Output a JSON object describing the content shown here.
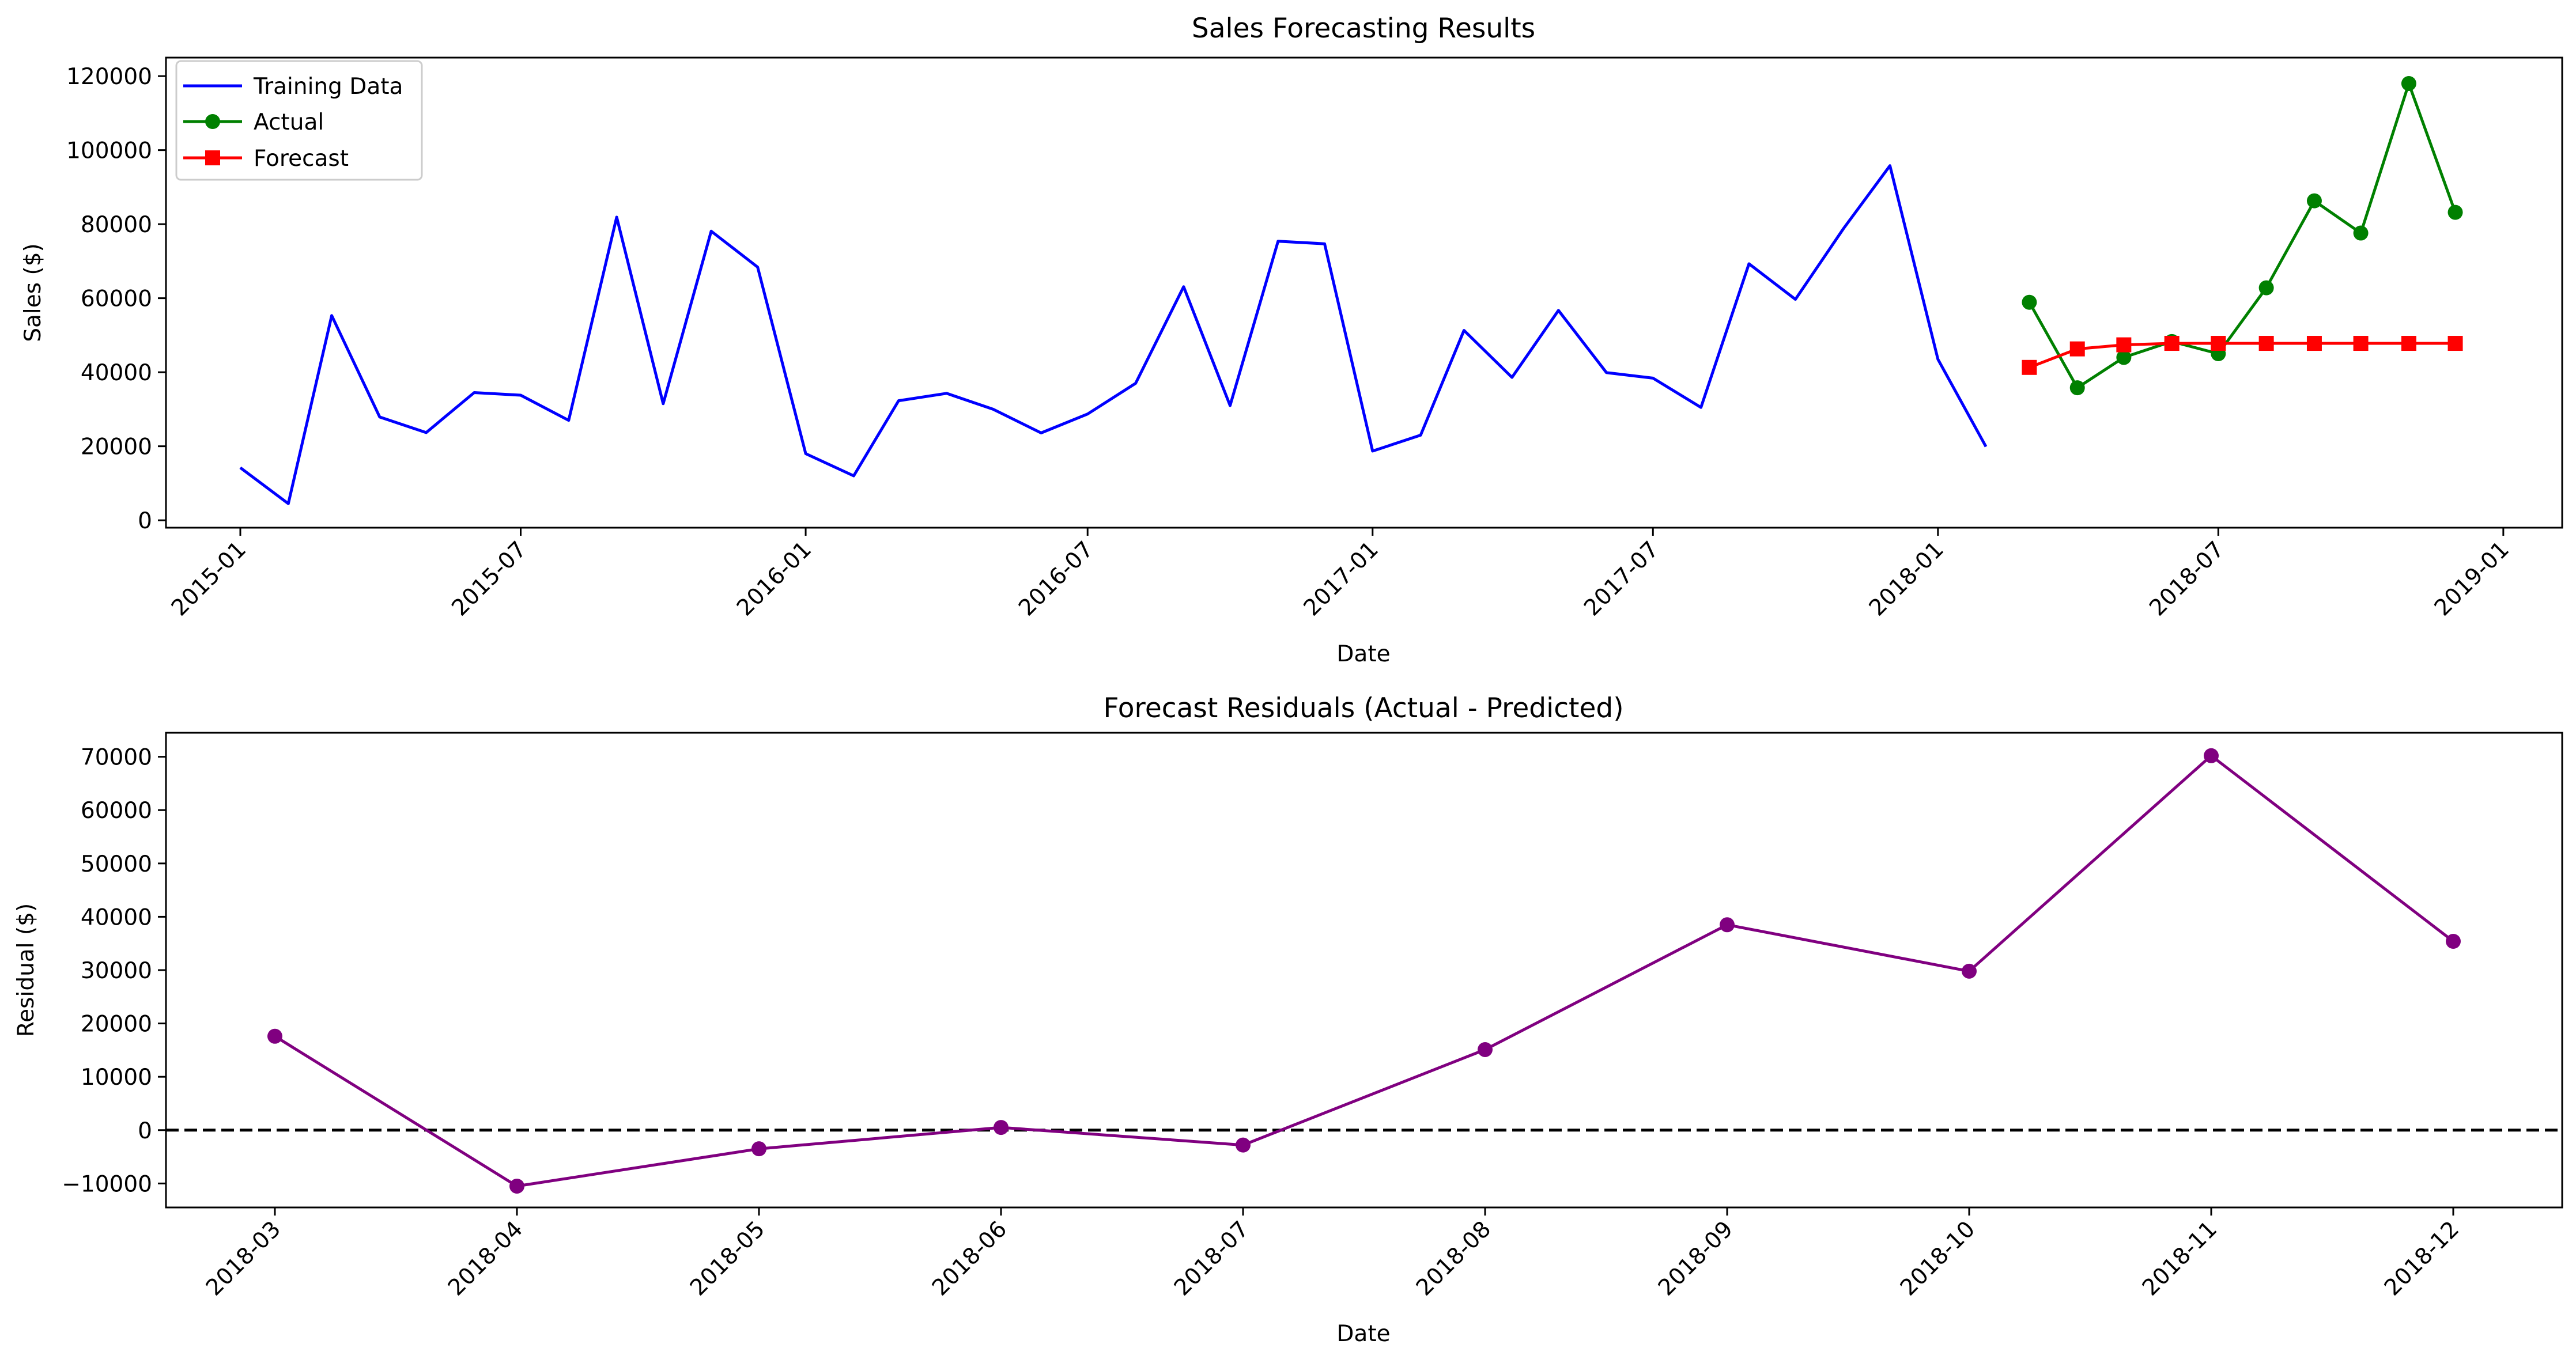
{
  "chart_data": [
    {
      "type": "line",
      "title": "Sales Forecasting Results",
      "xlabel": "Date",
      "ylabel": "Sales ($)",
      "x_axis_type": "date",
      "xlim": [
        "2014-11-14",
        "2019-02-08"
      ],
      "ylim": [
        -2000,
        125000
      ],
      "x_ticks": [
        "2015-01",
        "2015-07",
        "2016-01",
        "2016-07",
        "2017-01",
        "2017-07",
        "2018-01",
        "2018-07",
        "2019-01"
      ],
      "y_ticks": [
        0,
        20000,
        40000,
        60000,
        80000,
        100000,
        120000
      ],
      "grid": false,
      "legend": "upper left",
      "series": [
        {
          "name": "Training Data",
          "color": "#0000ff",
          "marker": "none",
          "x": [
            "2015-01-01",
            "2015-02-01",
            "2015-03-01",
            "2015-04-01",
            "2015-05-01",
            "2015-06-01",
            "2015-07-01",
            "2015-08-01",
            "2015-09-01",
            "2015-10-01",
            "2015-11-01",
            "2015-12-01",
            "2016-01-01",
            "2016-02-01",
            "2016-03-01",
            "2016-04-01",
            "2016-05-01",
            "2016-06-01",
            "2016-07-01",
            "2016-08-01",
            "2016-09-01",
            "2016-10-01",
            "2016-11-01",
            "2016-12-01",
            "2017-01-01",
            "2017-02-01",
            "2017-03-01",
            "2017-04-01",
            "2017-05-01",
            "2017-06-01",
            "2017-07-01",
            "2017-08-01",
            "2017-09-01",
            "2017-10-01",
            "2017-11-01",
            "2017-12-01",
            "2018-01-01",
            "2018-02-01"
          ],
          "y": [
            14200,
            4500,
            55300,
            27900,
            23700,
            34500,
            33800,
            27000,
            81900,
            31500,
            78100,
            68400,
            18000,
            12000,
            32300,
            34300,
            30000,
            23600,
            28700,
            37000,
            63100,
            31000,
            75400,
            74700,
            18700,
            23000,
            51300,
            38600,
            56700,
            39900,
            38400,
            30500,
            69300,
            59700,
            78800,
            95800,
            43500,
            19900
          ]
        },
        {
          "name": "Actual",
          "color": "#008000",
          "marker": "circle",
          "x": [
            "2018-03-01",
            "2018-04-01",
            "2018-05-01",
            "2018-06-01",
            "2018-07-01",
            "2018-08-01",
            "2018-09-01",
            "2018-10-01",
            "2018-11-01",
            "2018-12-01"
          ],
          "y": [
            58900,
            35800,
            44000,
            48300,
            45000,
            62800,
            86300,
            77600,
            118000,
            83200
          ]
        },
        {
          "name": "Forecast",
          "color": "#ff0000",
          "marker": "square",
          "x": [
            "2018-03-01",
            "2018-04-01",
            "2018-05-01",
            "2018-06-01",
            "2018-07-01",
            "2018-08-01",
            "2018-09-01",
            "2018-10-01",
            "2018-11-01",
            "2018-12-01"
          ],
          "y": [
            41300,
            46300,
            47400,
            47800,
            47800,
            47800,
            47800,
            47800,
            47800,
            47800
          ]
        }
      ]
    },
    {
      "type": "line",
      "title": "Forecast Residuals (Actual - Predicted)",
      "xlabel": "Date",
      "ylabel": "Residual ($)",
      "categories": [
        "2018-03",
        "2018-04",
        "2018-05",
        "2018-06",
        "2018-07",
        "2018-08",
        "2018-09",
        "2018-10",
        "2018-11",
        "2018-12"
      ],
      "ylim": [
        -14500,
        74500
      ],
      "y_ticks": [
        -10000,
        0,
        10000,
        20000,
        30000,
        40000,
        50000,
        60000,
        70000
      ],
      "y_tick_labels": [
        "−10000",
        "0",
        "10000",
        "20000",
        "30000",
        "40000",
        "50000",
        "60000",
        "70000"
      ],
      "grid": false,
      "reference_line": {
        "y": 0,
        "style": "dashed",
        "color": "#000000"
      },
      "series": [
        {
          "color": "#800080",
          "marker": "circle",
          "values": [
            17600,
            -10500,
            -3500,
            500,
            -2800,
            15100,
            38500,
            29800,
            70200,
            35400
          ]
        }
      ]
    }
  ]
}
